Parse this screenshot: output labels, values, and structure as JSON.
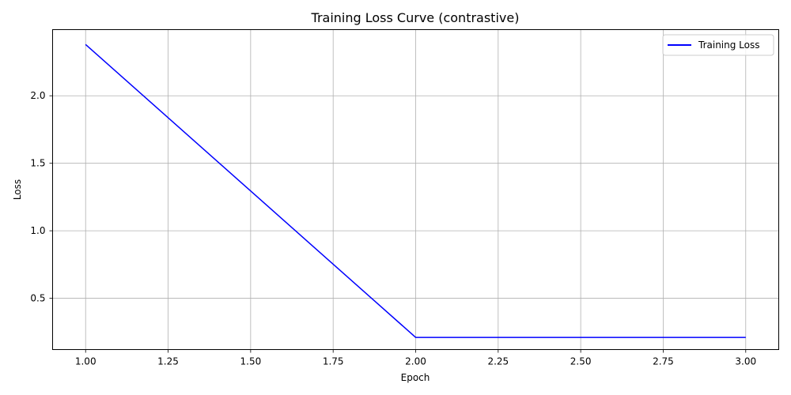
{
  "chart_data": {
    "type": "line",
    "title": "Training Loss Curve (contrastive)",
    "xlabel": "Epoch",
    "ylabel": "Loss",
    "xlim": [
      0.9,
      3.1
    ],
    "ylim": [
      0.12,
      2.49
    ],
    "xticks": [
      "1.00",
      "1.25",
      "1.50",
      "1.75",
      "2.00",
      "2.25",
      "2.50",
      "2.75",
      "3.00"
    ],
    "yticks": [
      "0.5",
      "1.0",
      "1.5",
      "2.0"
    ],
    "grid": true,
    "legend_position": "top-right",
    "series": [
      {
        "name": "Training Loss",
        "color": "#0000ff",
        "x": [
          1,
          2,
          3
        ],
        "y": [
          2.38,
          0.21,
          0.21
        ]
      }
    ]
  }
}
